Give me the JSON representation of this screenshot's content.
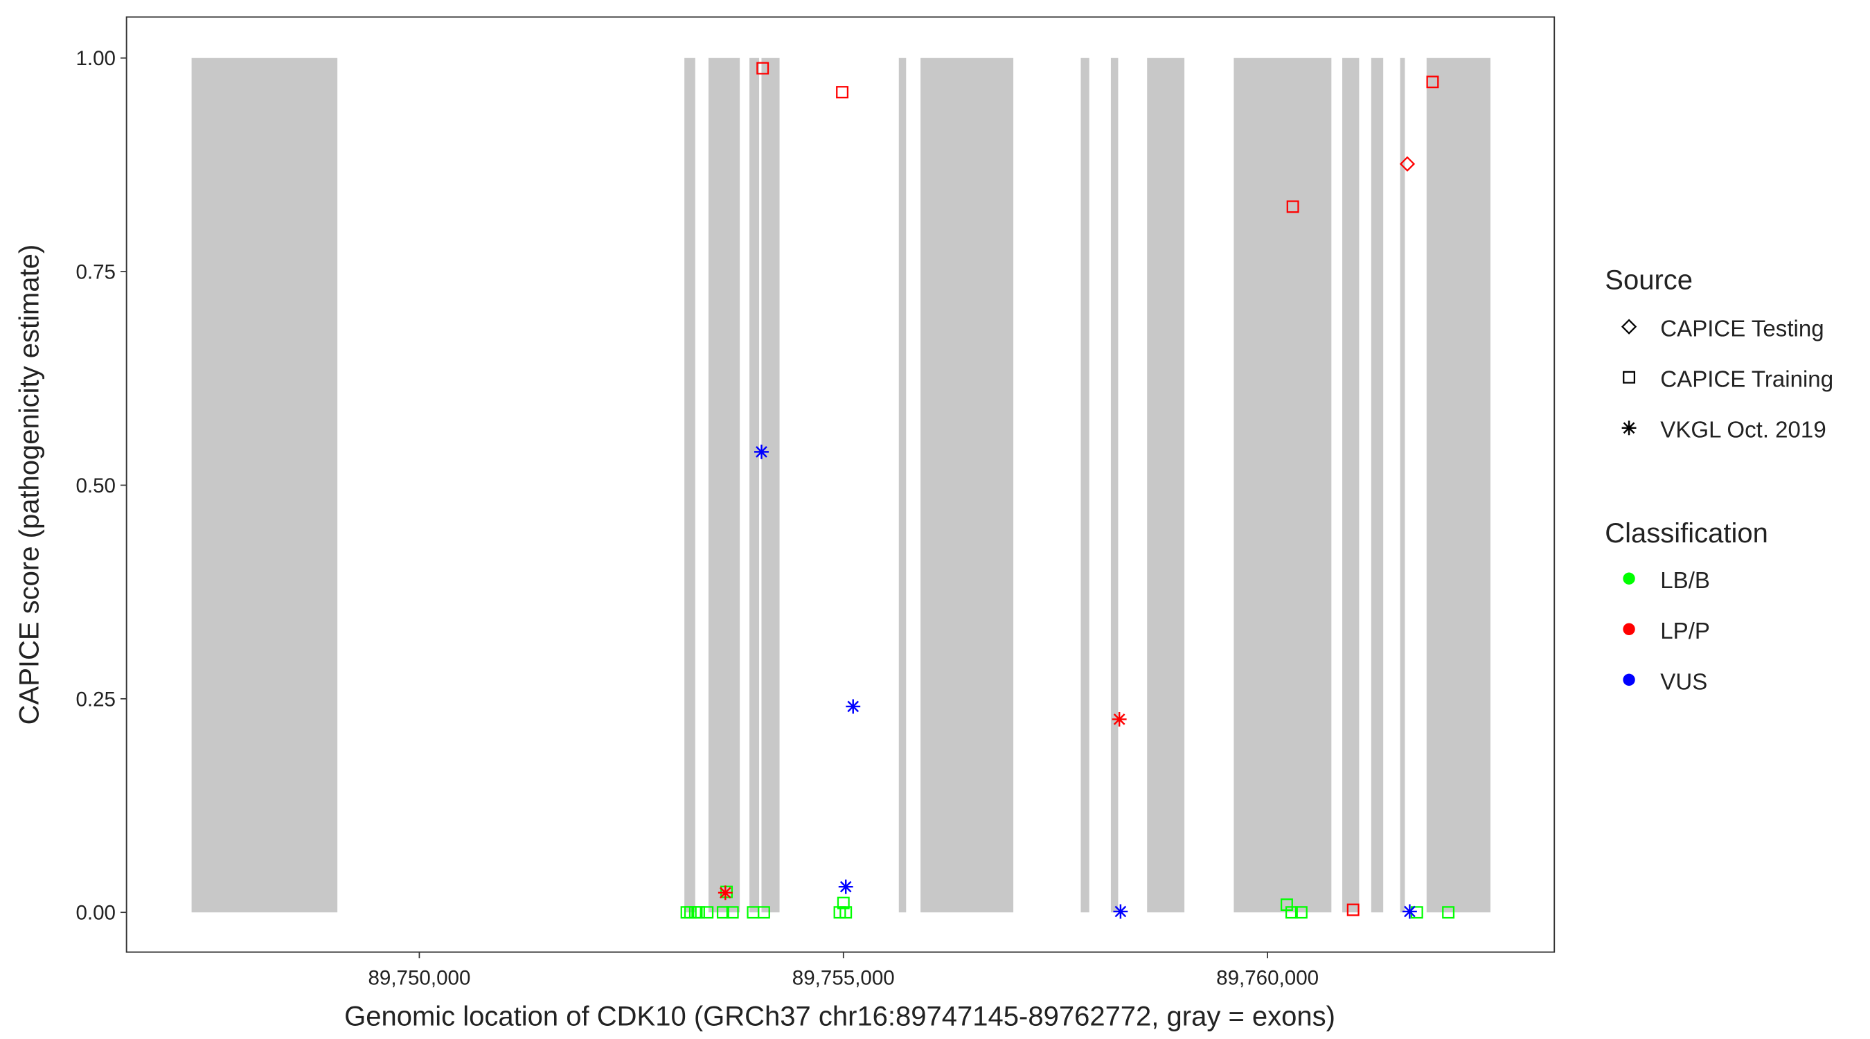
{
  "chart_data": {
    "type": "scatter",
    "xlabel": "Genomic location of CDK10 (GRCh37 chr16:89747145-89762772, gray = exons)",
    "ylabel": "CAPICE score (pathogenicity estimate)",
    "xlim": [
      89746548,
      89763381
    ],
    "ylim": [
      -0.0465,
      1.048
    ],
    "xticks": [
      {
        "value": 89750000,
        "label": "89,750,000"
      },
      {
        "value": 89755000,
        "label": "89,755,000"
      },
      {
        "value": 89760000,
        "label": "89,760,000"
      }
    ],
    "yticks": [
      {
        "value": 0,
        "label": "0.00"
      },
      {
        "value": 0.25,
        "label": "0.25"
      },
      {
        "value": 0.5,
        "label": "0.50"
      },
      {
        "value": 0.75,
        "label": "0.75"
      },
      {
        "value": 1,
        "label": "1.00"
      }
    ],
    "exon_color": "#c8c8c8",
    "exon_y": [
      0,
      1
    ],
    "exons": {
      "starts": [
        89747315,
        89753125,
        89753409,
        89753892,
        89754034,
        89755653,
        89755909,
        89757798,
        89758153,
        89758580,
        89759602,
        89760881,
        89761222,
        89761563,
        89761875
      ],
      "ends": [
        89749034,
        89753253,
        89753778,
        89754006,
        89754247,
        89755739,
        89757003,
        89757898,
        89758239,
        89759020,
        89760753,
        89761080,
        89761364,
        89761619,
        89762628
      ]
    },
    "source_title": "Source",
    "classification_title": "Classification",
    "classification": [
      {
        "name": "LB/B",
        "color": "#00ff00"
      },
      {
        "name": "LP/P",
        "color": "#ff0000"
      },
      {
        "name": "VUS",
        "color": "#0000ff"
      }
    ],
    "series": [
      {
        "name": "CAPICE Testing",
        "shape": "diamond",
        "x": [
          89761648
        ],
        "values": [
          0.876
        ],
        "colors": [
          "#ff0000"
        ]
      },
      {
        "name": "CAPICE Training",
        "shape": "square",
        "x": [
          89754048,
          89754986,
          89760298,
          89761946,
          89761009,
          89753153,
          89753196,
          89753253,
          89753295,
          89753395,
          89753580,
          89753622,
          89753693,
          89753935,
          89754062,
          89754957,
          89755000,
          89755028,
          89760227,
          89760284,
          89760398,
          89761761,
          89762131
        ],
        "values": [
          0.988,
          0.96,
          0.826,
          0.972,
          0.003,
          0,
          0,
          0,
          0,
          0,
          0,
          0.024,
          0,
          0,
          0,
          0,
          0.011,
          0,
          0.009,
          0,
          0,
          0,
          0
        ],
        "colors": [
          "#ff0000",
          "#ff0000",
          "#ff0000",
          "#ff0000",
          "#ff0000",
          "#00ff00",
          "#00ff00",
          "#00ff00",
          "#00ff00",
          "#00ff00",
          "#00ff00",
          "#00ff00",
          "#00ff00",
          "#00ff00",
          "#00ff00",
          "#00ff00",
          "#00ff00",
          "#00ff00",
          "#00ff00",
          "#00ff00",
          "#00ff00",
          "#00ff00",
          "#00ff00"
        ]
      },
      {
        "name": "VKGL Oct. 2019",
        "shape": "asterisk",
        "x": [
          89754034,
          89755114,
          89755028,
          89758267,
          89761676,
          89753608,
          89758253
        ],
        "values": [
          0.539,
          0.241,
          0.03,
          0.001,
          0.001,
          0.023,
          0.226
        ],
        "colors": [
          "#0000ff",
          "#0000ff",
          "#0000ff",
          "#0000ff",
          "#0000ff",
          "#ff0000",
          "#ff0000"
        ]
      }
    ]
  }
}
